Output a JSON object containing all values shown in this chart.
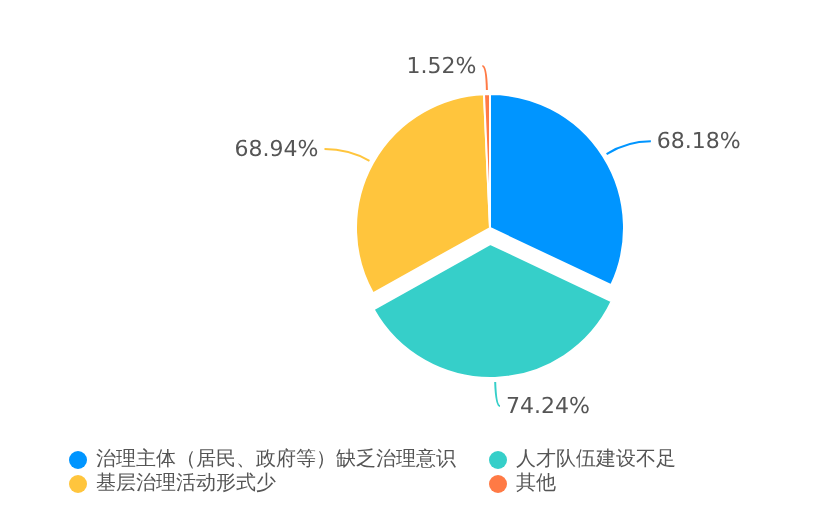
{
  "chart_data": {
    "type": "pie",
    "categories": [
      "治理主体（居民、政府等）缺乏治理意识",
      "人才队伍建设不足",
      "基层治理活动形式少",
      "其他"
    ],
    "values": [
      68.18,
      74.24,
      68.94,
      1.52
    ],
    "colors": [
      "#0095ff",
      "#36cfc9",
      "#ffc53d",
      "#ff7a45"
    ],
    "value_labels": [
      "68.18%",
      "74.24%",
      "68.94%",
      "1.52%"
    ],
    "legend": "bottom"
  }
}
